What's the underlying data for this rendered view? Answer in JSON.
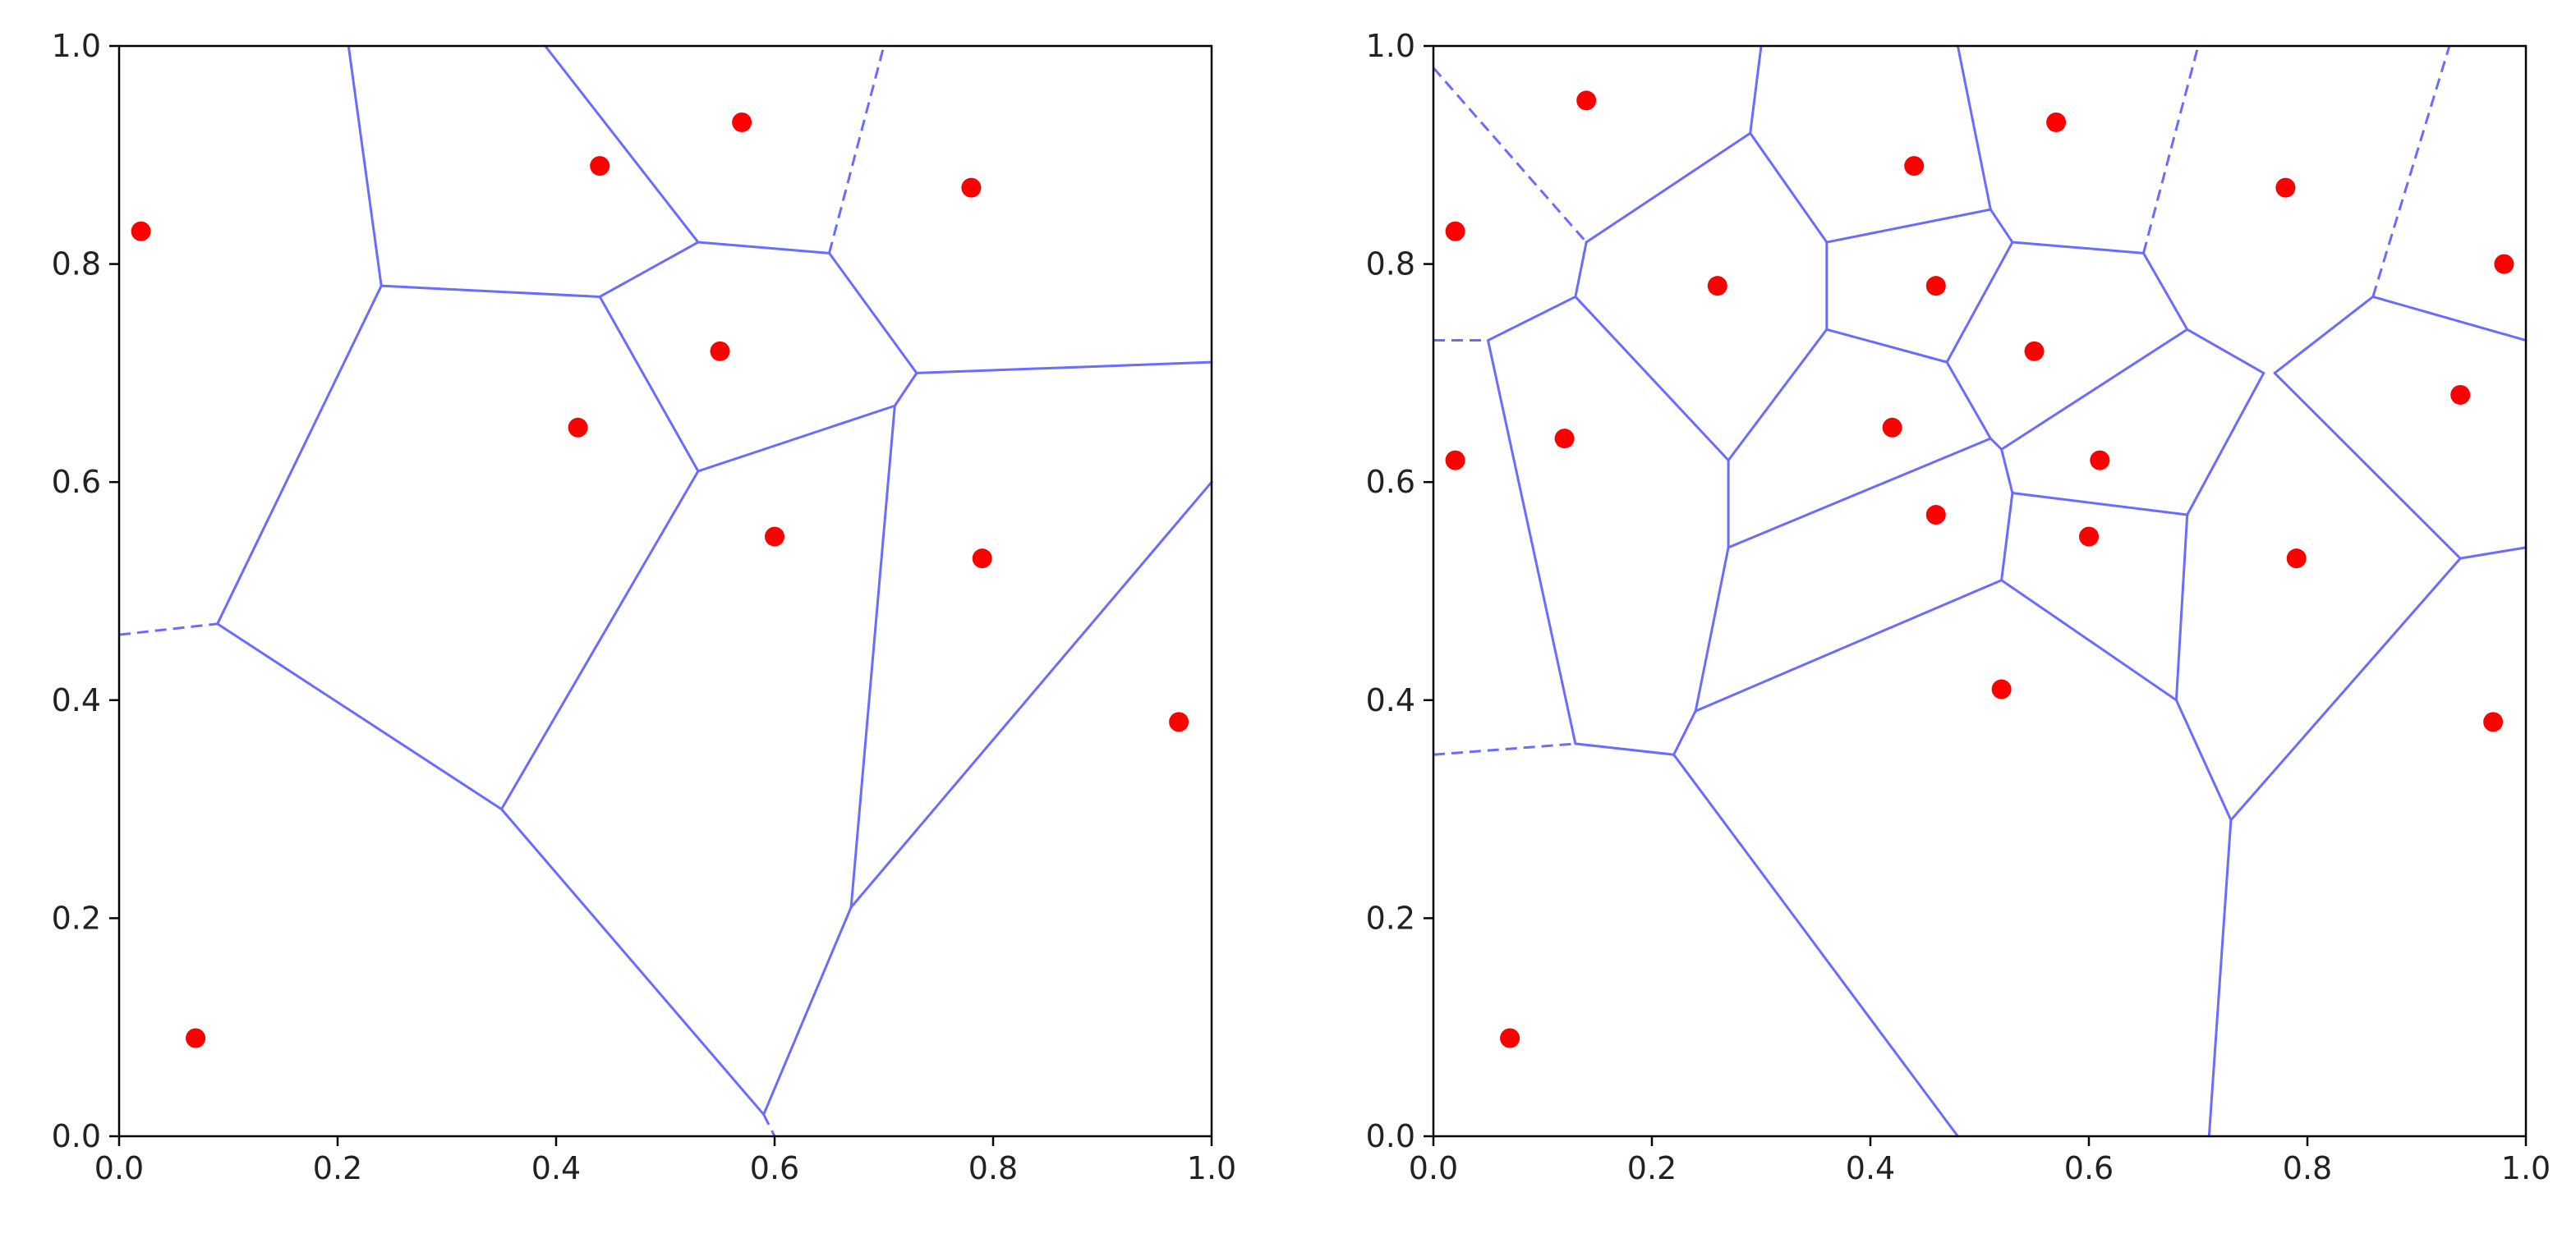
{
  "figure": {
    "background": "#ffffff"
  },
  "chart_data": [
    {
      "type": "scatter",
      "subtype": "voronoi",
      "title": "",
      "xlabel": "",
      "ylabel": "",
      "xlim": [
        0.0,
        1.0
      ],
      "ylim": [
        0.0,
        1.0
      ],
      "xticks": [
        "0.0",
        "0.2",
        "0.4",
        "0.6",
        "0.8",
        "1.0"
      ],
      "yticks": [
        "0.0",
        "0.2",
        "0.4",
        "0.6",
        "0.8",
        "1.0"
      ],
      "grid": false,
      "legend": "none",
      "point_color": "#ff0000",
      "edge_color": "#6a6cff",
      "points": [
        [
          0.02,
          0.83
        ],
        [
          0.07,
          0.09
        ],
        [
          0.44,
          0.89
        ],
        [
          0.57,
          0.93
        ],
        [
          0.78,
          0.87
        ],
        [
          0.55,
          0.72
        ],
        [
          0.42,
          0.65
        ],
        [
          0.6,
          0.55
        ],
        [
          0.79,
          0.53
        ],
        [
          0.97,
          0.38
        ]
      ],
      "edges": [
        [
          [
            0.21,
            1.0
          ],
          [
            0.24,
            0.78
          ]
        ],
        [
          [
            0.24,
            0.78
          ],
          [
            0.44,
            0.77
          ]
        ],
        [
          [
            0.24,
            0.78
          ],
          [
            0.09,
            0.47
          ]
        ],
        [
          [
            0.09,
            0.47
          ],
          [
            0.35,
            0.3
          ]
        ],
        [
          [
            0.35,
            0.3
          ],
          [
            0.53,
            0.61
          ]
        ],
        [
          [
            0.35,
            0.3
          ],
          [
            0.59,
            0.02
          ]
        ],
        [
          [
            0.44,
            0.77
          ],
          [
            0.53,
            0.61
          ]
        ],
        [
          [
            0.44,
            0.77
          ],
          [
            0.53,
            0.82
          ]
        ],
        [
          [
            0.39,
            1.0
          ],
          [
            0.53,
            0.82
          ]
        ],
        [
          [
            0.53,
            0.82
          ],
          [
            0.65,
            0.81
          ]
        ],
        [
          [
            0.65,
            0.81
          ],
          [
            0.73,
            0.7
          ]
        ],
        [
          [
            0.73,
            0.7
          ],
          [
            1.0,
            0.71
          ]
        ],
        [
          [
            0.73,
            0.7
          ],
          [
            0.71,
            0.67
          ]
        ],
        [
          [
            0.71,
            0.67
          ],
          [
            0.53,
            0.61
          ]
        ],
        [
          [
            0.71,
            0.67
          ],
          [
            0.67,
            0.21
          ]
        ],
        [
          [
            0.67,
            0.21
          ],
          [
            0.59,
            0.02
          ]
        ],
        [
          [
            0.67,
            0.21
          ],
          [
            1.0,
            0.6
          ]
        ]
      ],
      "dashed_edges": [
        [
          [
            0.0,
            0.46
          ],
          [
            0.09,
            0.47
          ]
        ],
        [
          [
            0.65,
            0.81
          ],
          [
            0.7,
            1.0
          ]
        ],
        [
          [
            0.59,
            0.02
          ],
          [
            0.6,
            0.0
          ]
        ]
      ]
    },
    {
      "type": "scatter",
      "subtype": "voronoi",
      "title": "",
      "xlabel": "",
      "ylabel": "",
      "xlim": [
        0.0,
        1.0
      ],
      "ylim": [
        0.0,
        1.0
      ],
      "xticks": [
        "0.0",
        "0.2",
        "0.4",
        "0.6",
        "0.8",
        "1.0"
      ],
      "yticks": [
        "0.0",
        "0.2",
        "0.4",
        "0.6",
        "0.8",
        "1.0"
      ],
      "grid": false,
      "legend": "none",
      "point_color": "#ff0000",
      "edge_color": "#6a6cff",
      "points": [
        [
          0.02,
          0.83
        ],
        [
          0.14,
          0.95
        ],
        [
          0.02,
          0.62
        ],
        [
          0.12,
          0.64
        ],
        [
          0.26,
          0.78
        ],
        [
          0.07,
          0.09
        ],
        [
          0.44,
          0.89
        ],
        [
          0.46,
          0.78
        ],
        [
          0.57,
          0.93
        ],
        [
          0.55,
          0.72
        ],
        [
          0.42,
          0.65
        ],
        [
          0.46,
          0.57
        ],
        [
          0.61,
          0.62
        ],
        [
          0.6,
          0.55
        ],
        [
          0.52,
          0.41
        ],
        [
          0.78,
          0.87
        ],
        [
          0.79,
          0.53
        ],
        [
          0.94,
          0.68
        ],
        [
          0.98,
          0.8
        ],
        [
          0.97,
          0.38
        ]
      ],
      "edges": [
        [
          [
            0.14,
            0.82
          ],
          [
            0.29,
            0.92
          ]
        ],
        [
          [
            0.14,
            0.82
          ],
          [
            0.13,
            0.77
          ]
        ],
        [
          [
            0.13,
            0.77
          ],
          [
            0.05,
            0.73
          ]
        ],
        [
          [
            0.05,
            0.73
          ],
          [
            0.13,
            0.36
          ]
        ],
        [
          [
            0.13,
            0.36
          ],
          [
            0.22,
            0.35
          ]
        ],
        [
          [
            0.22,
            0.35
          ],
          [
            0.24,
            0.39
          ]
        ],
        [
          [
            0.22,
            0.35
          ],
          [
            0.48,
            0.0
          ]
        ],
        [
          [
            0.13,
            0.77
          ],
          [
            0.27,
            0.62
          ]
        ],
        [
          [
            0.27,
            0.62
          ],
          [
            0.27,
            0.54
          ]
        ],
        [
          [
            0.27,
            0.54
          ],
          [
            0.24,
            0.39
          ]
        ],
        [
          [
            0.27,
            0.54
          ],
          [
            0.51,
            0.64
          ]
        ],
        [
          [
            0.27,
            0.62
          ],
          [
            0.36,
            0.74
          ]
        ],
        [
          [
            0.29,
            0.92
          ],
          [
            0.3,
            1.0
          ]
        ],
        [
          [
            0.29,
            0.92
          ],
          [
            0.36,
            0.82
          ]
        ],
        [
          [
            0.36,
            0.82
          ],
          [
            0.36,
            0.74
          ]
        ],
        [
          [
            0.36,
            0.82
          ],
          [
            0.51,
            0.85
          ]
        ],
        [
          [
            0.48,
            1.0
          ],
          [
            0.51,
            0.85
          ]
        ],
        [
          [
            0.51,
            0.85
          ],
          [
            0.53,
            0.82
          ]
        ],
        [
          [
            0.53,
            0.82
          ],
          [
            0.47,
            0.71
          ]
        ],
        [
          [
            0.36,
            0.74
          ],
          [
            0.47,
            0.71
          ]
        ],
        [
          [
            0.47,
            0.71
          ],
          [
            0.51,
            0.64
          ]
        ],
        [
          [
            0.51,
            0.64
          ],
          [
            0.52,
            0.63
          ]
        ],
        [
          [
            0.52,
            0.63
          ],
          [
            0.53,
            0.59
          ]
        ],
        [
          [
            0.53,
            0.59
          ],
          [
            0.52,
            0.51
          ]
        ],
        [
          [
            0.24,
            0.39
          ],
          [
            0.52,
            0.51
          ]
        ],
        [
          [
            0.52,
            0.63
          ],
          [
            0.69,
            0.74
          ]
        ],
        [
          [
            0.53,
            0.82
          ],
          [
            0.65,
            0.81
          ]
        ],
        [
          [
            0.65,
            0.81
          ],
          [
            0.69,
            0.74
          ]
        ],
        [
          [
            0.69,
            0.74
          ],
          [
            0.76,
            0.7
          ]
        ],
        [
          [
            0.53,
            0.59
          ],
          [
            0.69,
            0.57
          ]
        ],
        [
          [
            0.69,
            0.57
          ],
          [
            0.76,
            0.7
          ]
        ],
        [
          [
            0.69,
            0.57
          ],
          [
            0.68,
            0.4
          ]
        ],
        [
          [
            0.52,
            0.51
          ],
          [
            0.68,
            0.4
          ]
        ],
        [
          [
            0.68,
            0.4
          ],
          [
            0.73,
            0.29
          ]
        ],
        [
          [
            0.73,
            0.29
          ],
          [
            0.71,
            0.0
          ]
        ],
        [
          [
            0.73,
            0.29
          ],
          [
            0.94,
            0.53
          ]
        ],
        [
          [
            0.94,
            0.53
          ],
          [
            1.0,
            0.54
          ]
        ],
        [
          [
            0.94,
            0.53
          ],
          [
            0.77,
            0.7
          ]
        ],
        [
          [
            0.77,
            0.7
          ],
          [
            0.86,
            0.77
          ]
        ],
        [
          [
            0.86,
            0.77
          ],
          [
            1.0,
            0.73
          ]
        ]
      ],
      "dashed_edges": [
        [
          [
            0.0,
            0.98
          ],
          [
            0.14,
            0.82
          ]
        ],
        [
          [
            0.0,
            0.73
          ],
          [
            0.05,
            0.73
          ]
        ],
        [
          [
            0.0,
            0.35
          ],
          [
            0.13,
            0.36
          ]
        ],
        [
          [
            0.65,
            0.81
          ],
          [
            0.7,
            1.0
          ]
        ],
        [
          [
            0.86,
            0.77
          ],
          [
            0.93,
            1.0
          ]
        ]
      ]
    }
  ]
}
